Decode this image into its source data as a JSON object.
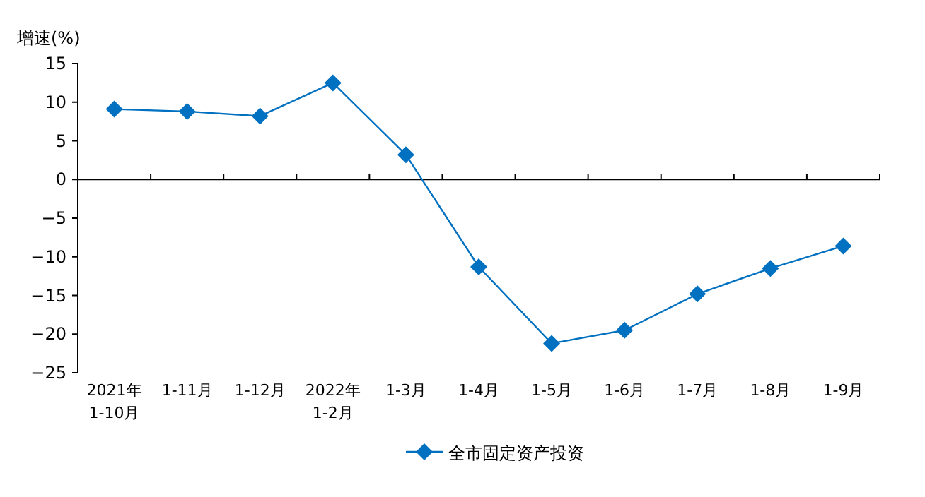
{
  "chart_data": {
    "type": "line",
    "ylabel": "增速(%)",
    "categories": [
      "2021年\n1-10月",
      "1-11月",
      "1-12月",
      "2022年\n1-2月",
      "1-3月",
      "1-4月",
      "1-5月",
      "1-6月",
      "1-7月",
      "1-8月",
      "1-9月"
    ],
    "series": [
      {
        "name": "全市固定资产投资",
        "color": "#0070c0",
        "values": [
          9.1,
          8.8,
          8.2,
          12.5,
          3.2,
          -11.3,
          -21.2,
          -19.5,
          -14.8,
          -11.5,
          -8.6
        ]
      }
    ],
    "ylim": [
      -25,
      15
    ],
    "yticks": [
      -25,
      -20,
      -15,
      -10,
      -5,
      0,
      5,
      10,
      15
    ],
    "legend": "bottom",
    "marker": "diamond",
    "line_style": "solid"
  }
}
